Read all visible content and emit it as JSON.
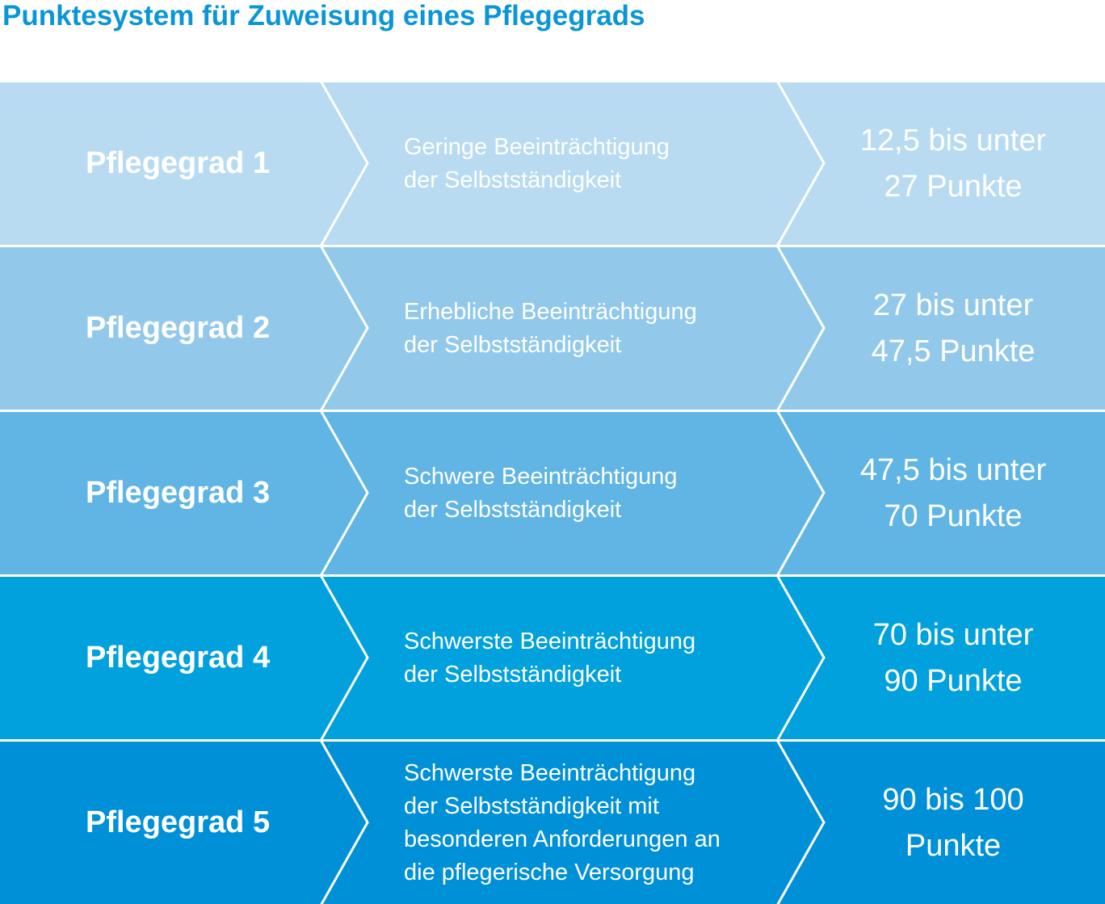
{
  "title": "Punktesystem für Zuweisung eines Pflegegrads",
  "rows": [
    {
      "grade": "Pflegegrad 1",
      "description": "Geringe Beeinträchtigung\nder Selbstständigkeit",
      "points": "12,5 bis unter\n27 Punkte",
      "color": "#b8dbf2"
    },
    {
      "grade": "Pflegegrad 2",
      "description": "Erhebliche Beeinträchtigung\nder Selbstständigkeit",
      "points": "27 bis unter\n47,5 Punkte",
      "color": "#92c9eb"
    },
    {
      "grade": "Pflegegrad 3",
      "description": "Schwere Beeinträchtigung\nder Selbstständigkeit",
      "points": "47,5 bis unter\n70 Punkte",
      "color": "#60b5e4"
    },
    {
      "grade": "Pflegegrad 4",
      "description": "Schwerste Beeinträchtigung\nder Selbstständigkeit",
      "points": "70 bis unter\n90 Punkte",
      "color": "#00a1dd"
    },
    {
      "grade": "Pflegegrad 5",
      "description": "Schwerste Beeinträchtigung\nder Selbstständigkeit mit\nbesonderen Anforderungen an\ndie pflegerische Versorgung",
      "points": "90 bis 100\nPunkte",
      "color": "#0090d7"
    }
  ]
}
